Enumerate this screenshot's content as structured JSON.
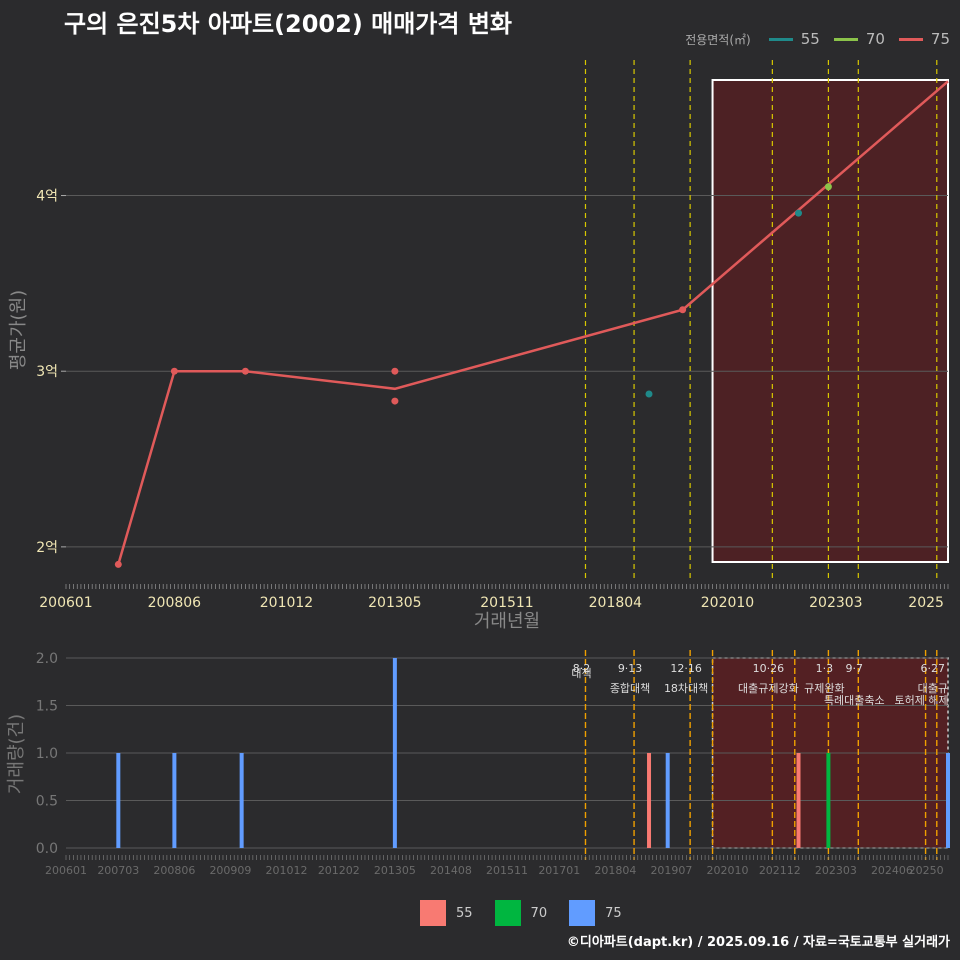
{
  "title": "구의 은진5차 아파트(2002) 매매가격 변화",
  "legend_top": {
    "title": "전용면적(㎡)",
    "items": [
      {
        "label": "55",
        "color": "#1f8a8a"
      },
      {
        "label": "70",
        "color": "#8bc34a"
      },
      {
        "label": "75",
        "color": "#e05a5a"
      }
    ]
  },
  "legend_bottom": {
    "items": [
      {
        "label": "55",
        "color": "#f87a72"
      },
      {
        "label": "70",
        "color": "#00b640"
      },
      {
        "label": "75",
        "color": "#619cff"
      }
    ]
  },
  "footer": "©디아파트(dapt.kr) / 2025.09.16 / 자료=국토교통부 실거래가",
  "chart_data": [
    {
      "type": "line",
      "xlabel": "거래년월",
      "ylabel": "평균가(원)",
      "x_ticks": [
        "200601",
        "200806",
        "201012",
        "201305",
        "201511",
        "201804",
        "202010",
        "202303",
        "2025"
      ],
      "y_ticks": [
        "2억",
        "3억",
        "4억"
      ],
      "ylim": [
        1.8,
        4.8
      ],
      "series": [
        {
          "name": "75",
          "color": "#e05a5a",
          "line": [
            [
              "2007-03",
              1.9
            ],
            [
              "2008-06",
              3.0
            ],
            [
              "2010-01",
              3.0
            ],
            [
              "2013-05",
              2.9
            ],
            [
              "2019-10",
              3.35
            ],
            [
              "2025-09",
              4.65
            ]
          ],
          "points": [
            [
              "2007-03",
              1.9
            ],
            [
              "2008-06",
              3.0
            ],
            [
              "2010-01",
              3.0
            ],
            [
              "2013-05",
              3.0
            ],
            [
              "2013-05",
              2.83
            ],
            [
              "2019-10",
              3.35
            ]
          ]
        },
        {
          "name": "55",
          "color": "#1f8a8a",
          "points": [
            [
              "2019-01",
              2.87
            ],
            [
              "2022-05",
              3.9
            ]
          ]
        },
        {
          "name": "70",
          "color": "#8bc34a",
          "points": [
            [
              "2023-01",
              4.05
            ]
          ]
        }
      ],
      "highlight_period": [
        "2020-06",
        "2025-09"
      ],
      "policy_lines": [
        "2017-08",
        "2018-09",
        "2019-12",
        "2021-10",
        "2023-01",
        "2023-09",
        "2025-06"
      ]
    },
    {
      "type": "bar",
      "ylabel": "거래량(건)",
      "x_ticks": [
        "200601",
        "200703",
        "200806",
        "200909",
        "201012",
        "201202",
        "201305",
        "201408",
        "201511",
        "201701",
        "201804",
        "201907",
        "202010",
        "202112",
        "202303",
        "202406",
        "20250"
      ],
      "y_ticks": [
        "0.0",
        "0.5",
        "1.0",
        "1.5",
        "2.0"
      ],
      "ylim": [
        0,
        2
      ],
      "bars": [
        {
          "x": "2007-03",
          "value": 1,
          "series": "75"
        },
        {
          "x": "2008-06",
          "value": 1,
          "series": "75"
        },
        {
          "x": "2009-12",
          "value": 1,
          "series": "75"
        },
        {
          "x": "2013-05",
          "value": 2,
          "series": "75"
        },
        {
          "x": "2019-01",
          "value": 1,
          "series": "55"
        },
        {
          "x": "2019-06",
          "value": 1,
          "series": "75"
        },
        {
          "x": "2022-05",
          "value": 1,
          "series": "55"
        },
        {
          "x": "2023-01",
          "value": 1,
          "series": "70"
        },
        {
          "x": "2025-09",
          "value": 1,
          "series": "75"
        }
      ],
      "highlight_period": [
        "2020-06",
        "2025-09"
      ],
      "policy_lines": [
        {
          "x": "2017-08",
          "date": "8·2",
          "label": "대책"
        },
        {
          "x": "2018-09",
          "date": "9·13",
          "label": "종합대책"
        },
        {
          "x": "2019-12",
          "date": "12·16",
          "label": "18차대책"
        },
        {
          "x": "2020-06",
          "date": "",
          "label": ""
        },
        {
          "x": "2021-10",
          "date": "10·26",
          "label": "대출규제강화"
        },
        {
          "x": "2022-04",
          "date": "",
          "label": ""
        },
        {
          "x": "2023-01",
          "date": "1·3",
          "label": "규제완화"
        },
        {
          "x": "2023-09",
          "date": "9·7",
          "label": "특례대출축소"
        },
        {
          "x": "2025-03",
          "date": "",
          "label": "토허제 해제"
        },
        {
          "x": "2025-06",
          "date": "6·27",
          "label": "대출규"
        }
      ]
    }
  ]
}
